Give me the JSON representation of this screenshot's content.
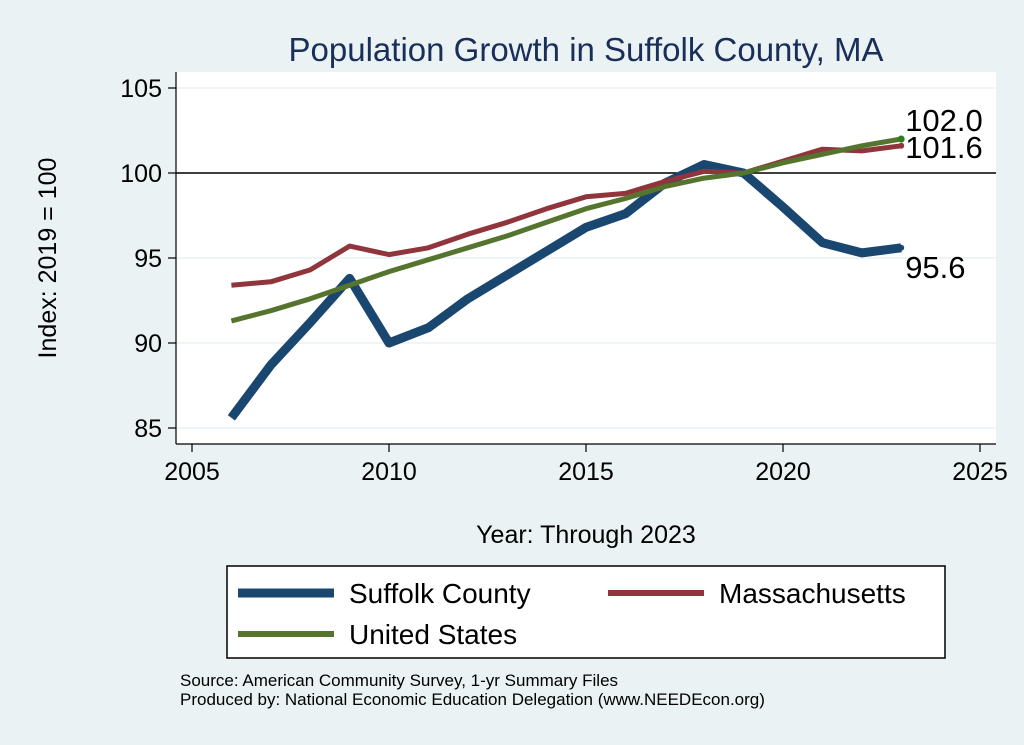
{
  "chart_data": {
    "type": "line",
    "title": "Population Growth in Suffolk County, MA",
    "xlabel": "Year: Through 2023",
    "ylabel": "Index: 2019 = 100",
    "xlim": [
      2005,
      2025
    ],
    "ylim": [
      85,
      105
    ],
    "x_ticks": [
      2005,
      2010,
      2015,
      2020,
      2025
    ],
    "y_ticks": [
      85,
      90,
      95,
      100,
      105
    ],
    "reference_line": 100,
    "grid": "horizontal",
    "legend": "bottom",
    "x": [
      2006,
      2007,
      2008,
      2009,
      2010,
      2011,
      2012,
      2013,
      2014,
      2015,
      2016,
      2017,
      2018,
      2019,
      2020,
      2021,
      2022,
      2023
    ],
    "series": [
      {
        "name": "Suffolk  County",
        "color": "#1a476f",
        "values": [
          85.6,
          88.7,
          91.2,
          93.8,
          90.0,
          90.9,
          92.6,
          94.0,
          95.4,
          96.8,
          97.6,
          99.4,
          100.5,
          100.0,
          98.0,
          95.9,
          95.3,
          95.6
        ],
        "end_label": "95.6"
      },
      {
        "name": "Massachusetts",
        "color": "#90353b",
        "values": [
          93.4,
          93.6,
          94.3,
          95.7,
          95.2,
          95.6,
          96.4,
          97.1,
          97.9,
          98.6,
          98.8,
          99.5,
          100.1,
          100.0,
          100.7,
          101.4,
          101.3,
          101.6
        ],
        "end_label": "101.6"
      },
      {
        "name": "United States",
        "color": "#55752f",
        "values": [
          91.3,
          91.9,
          92.6,
          93.4,
          94.2,
          94.9,
          95.6,
          96.3,
          97.1,
          97.9,
          98.5,
          99.2,
          99.7,
          100.0,
          100.6,
          101.1,
          101.6,
          102.0
        ],
        "end_label": "102.0"
      }
    ]
  },
  "notes": {
    "source": "Source: American Community Survey, 1-yr Summary Files",
    "produced": "Produced by: National Economic Education Delegation (www.NEEDEcon.org)"
  }
}
